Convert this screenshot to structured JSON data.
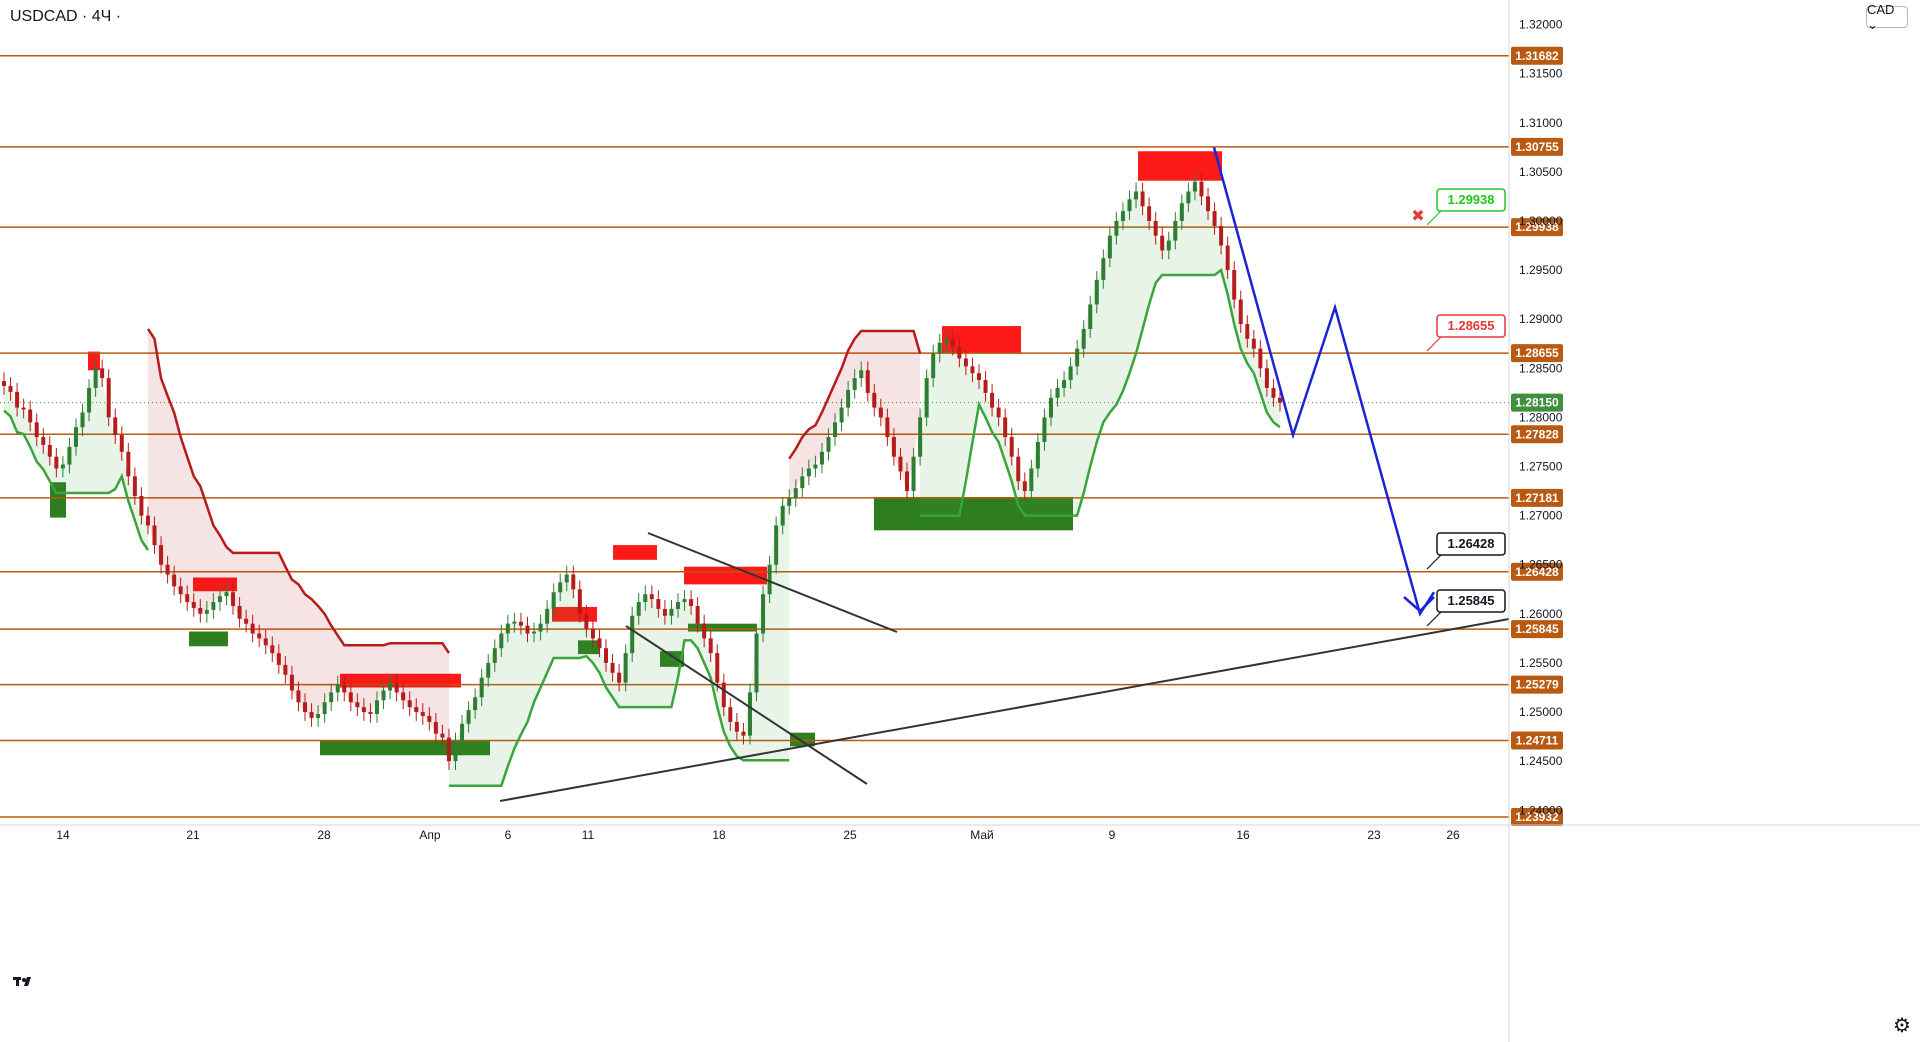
{
  "header": {
    "symbol": "USDCAD · 4Ч ·",
    "currency_button": "CAD ⌄"
  },
  "colors": {
    "level_line": "#b85a12",
    "level_label_bg": "#b85a12",
    "current_price_bg": "#3f8f3f",
    "bull_candle": "#2e7d32",
    "bear_candle": "#b71c1c",
    "supply_zone": "#ff1a1a",
    "demand_zone": "#2e7d1e",
    "supertrend_down": "#b71c1c",
    "supertrend_up": "#3aa53a",
    "projection": "#1a24d6",
    "trendline": "#333333"
  },
  "chart_data": {
    "type": "candlestick",
    "symbol": "USDCAD",
    "timeframe": "4Ч",
    "ylim": [
      1.2385,
      1.3225
    ],
    "price_axis_ticks": [
      "1.31500",
      "1.31000",
      "1.30500",
      "1.30000",
      "1.29500",
      "1.29000",
      "1.28500",
      "1.28000",
      "1.27500",
      "1.27000",
      "1.26500",
      "1.26000",
      "1.25500",
      "1.25000",
      "1.24500",
      "1.24000",
      "1.32000"
    ],
    "time_axis_labels": [
      "14",
      "21",
      "28",
      "Апр",
      "6",
      "11",
      "18",
      "25",
      "Май",
      "9",
      "16",
      "23",
      "26"
    ],
    "levels": [
      "1.31682",
      "1.30755",
      "1.29938",
      "1.28655",
      "1.27828",
      "1.27181",
      "1.26428",
      "1.25845",
      "1.25279",
      "1.24711",
      "1.23932"
    ],
    "current_price": "1.28150",
    "callouts": [
      {
        "label": "1.29938",
        "style": "green-outline",
        "marker": "✖"
      },
      {
        "label": "1.28655",
        "style": "red-outline"
      },
      {
        "label": "1.26428",
        "style": "black-outline"
      },
      {
        "label": "1.25845",
        "style": "black-outline"
      }
    ],
    "supply_zones": [
      {
        "from": 1.2867,
        "to": 1.2848
      },
      {
        "from": 1.2637,
        "to": 1.2623
      },
      {
        "from": 1.2539,
        "to": 1.2525
      },
      {
        "from": 1.2607,
        "to": 1.2592
      },
      {
        "from": 1.267,
        "to": 1.2655
      },
      {
        "from": 1.2648,
        "to": 1.263
      },
      {
        "from": 1.2893,
        "to": 1.2865
      },
      {
        "from": 1.3071,
        "to": 1.3041
      }
    ],
    "demand_zones": [
      {
        "from": 1.2734,
        "to": 1.2698
      },
      {
        "from": 1.2582,
        "to": 1.2567
      },
      {
        "from": 1.2471,
        "to": 1.2456
      },
      {
        "from": 1.2573,
        "to": 1.2559
      },
      {
        "from": 1.2562,
        "to": 1.2546
      },
      {
        "from": 1.259,
        "to": 1.2582
      },
      {
        "from": 1.2479,
        "to": 1.2465
      },
      {
        "from": 1.2719,
        "to": 1.2685
      }
    ],
    "close_series": [
      1.2832,
      1.2826,
      1.281,
      1.2808,
      1.2795,
      1.278,
      1.2772,
      1.276,
      1.2748,
      1.2752,
      1.277,
      1.279,
      1.2805,
      1.283,
      1.285,
      1.284,
      1.28,
      1.2782,
      1.2765,
      1.274,
      1.272,
      1.27,
      1.269,
      1.267,
      1.265,
      1.264,
      1.2628,
      1.262,
      1.2612,
      1.2606,
      1.26,
      1.2604,
      1.2612,
      1.2618,
      1.2622,
      1.2608,
      1.2595,
      1.259,
      1.258,
      1.2575,
      1.2568,
      1.256,
      1.2548,
      1.2538,
      1.2522,
      1.251,
      1.25,
      1.2494,
      1.2498,
      1.251,
      1.252,
      1.2528,
      1.252,
      1.251,
      1.2505,
      1.25,
      1.2498,
      1.2512,
      1.2522,
      1.253,
      1.252,
      1.2512,
      1.2505,
      1.25,
      1.2496,
      1.249,
      1.2478,
      1.2474,
      1.245,
      1.247,
      1.2488,
      1.2502,
      1.2515,
      1.2535,
      1.255,
      1.2565,
      1.258,
      1.259,
      1.2592,
      1.2588,
      1.258,
      1.2582,
      1.259,
      1.2605,
      1.2622,
      1.2632,
      1.264,
      1.2625,
      1.26,
      1.2585,
      1.2575,
      1.2565,
      1.255,
      1.254,
      1.253,
      1.256,
      1.2598,
      1.2612,
      1.262,
      1.2615,
      1.2605,
      1.2598,
      1.2605,
      1.2612,
      1.2615,
      1.2608,
      1.259,
      1.2575,
      1.256,
      1.253,
      1.2505,
      1.249,
      1.248,
      1.2476,
      1.252,
      1.258,
      1.262,
      1.265,
      1.269,
      1.271,
      1.2718,
      1.2728,
      1.274,
      1.2748,
      1.2752,
      1.2765,
      1.278,
      1.2795,
      1.281,
      1.2828,
      1.284,
      1.2848,
      1.2825,
      1.281,
      1.28,
      1.278,
      1.276,
      1.2745,
      1.2725,
      1.276,
      1.28,
      1.284,
      1.2865,
      1.2876,
      1.288,
      1.2872,
      1.286,
      1.2852,
      1.2845,
      1.2838,
      1.2825,
      1.281,
      1.28,
      1.278,
      1.276,
      1.2735,
      1.2725,
      1.2748,
      1.2775,
      1.28,
      1.282,
      1.283,
      1.2838,
      1.2852,
      1.287,
      1.289,
      1.2915,
      1.294,
      1.2962,
      1.2985,
      1.3,
      1.301,
      1.3022,
      1.303,
      1.3015,
      1.3,
      1.2985,
      1.297,
      1.298,
      1.3,
      1.3018,
      1.303,
      1.304,
      1.3025,
      1.301,
      1.2995,
      1.2975,
      1.295,
      1.292,
      1.2895,
      1.288,
      1.287,
      1.285,
      1.283,
      1.282,
      1.2815
    ],
    "projection_path": [
      1.3075,
      1.2782,
      1.2912,
      1.26,
      1.2622
    ],
    "annotations": []
  }
}
